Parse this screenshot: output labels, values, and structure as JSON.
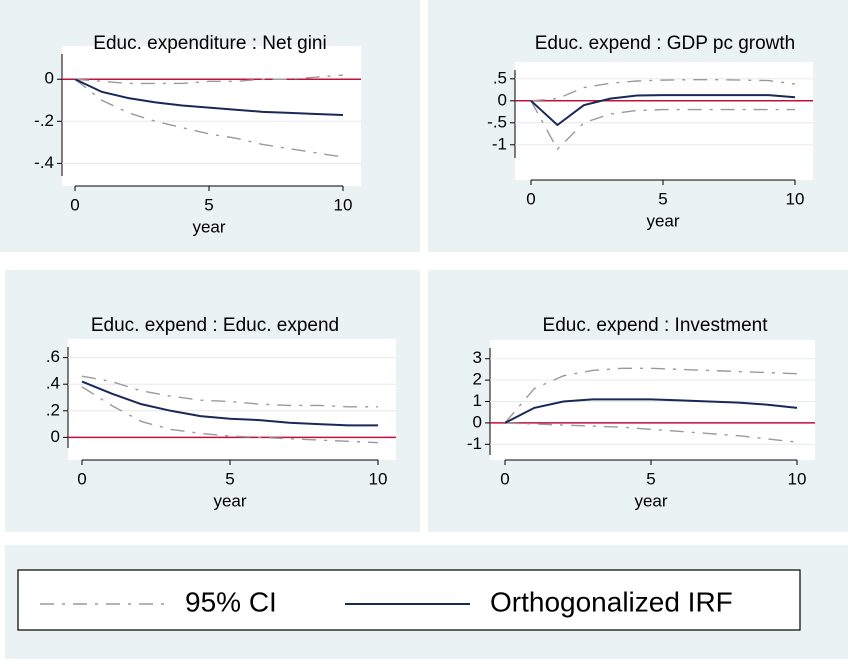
{
  "chart_data": [
    {
      "type": "line",
      "title": "Educ. expenditure : Net gini",
      "x_label": "year",
      "x": [
        0,
        1,
        2,
        3,
        4,
        5,
        6,
        7,
        8,
        9,
        10
      ],
      "irf": [
        0,
        -0.06,
        -0.09,
        -0.11,
        -0.125,
        -0.135,
        -0.145,
        -0.155,
        -0.16,
        -0.165,
        -0.17
      ],
      "ci_lower": [
        0,
        -0.1,
        -0.16,
        -0.2,
        -0.23,
        -0.26,
        -0.28,
        -0.31,
        -0.33,
        -0.35,
        -0.37
      ],
      "ci_upper": [
        0,
        -0.01,
        -0.02,
        -0.02,
        -0.02,
        -0.01,
        -0.01,
        0,
        0,
        0.01,
        0.02
      ],
      "xlim": [
        0,
        10
      ],
      "xticks": [
        0,
        5,
        10
      ],
      "ylim": [
        -0.46,
        0.12
      ],
      "yticks": [
        {
          "value": -0.4,
          "label": "-.4"
        },
        {
          "value": -0.2,
          "label": "-.2"
        },
        0
      ],
      "hline": 0
    },
    {
      "type": "line",
      "title": "Educ. expend : GDP pc growth",
      "x_label": "year",
      "x": [
        0,
        1,
        2,
        3,
        4,
        5,
        6,
        7,
        8,
        9,
        10
      ],
      "irf": [
        0,
        -0.55,
        -0.1,
        0.05,
        0.12,
        0.13,
        0.13,
        0.13,
        0.13,
        0.13,
        0.08
      ],
      "ci_lower": [
        0,
        -1.1,
        -0.5,
        -0.3,
        -0.22,
        -0.2,
        -0.2,
        -0.2,
        -0.2,
        -0.2,
        -0.2
      ],
      "ci_upper": [
        0,
        0.05,
        0.3,
        0.4,
        0.45,
        0.47,
        0.48,
        0.48,
        0.47,
        0.46,
        0.38
      ],
      "xlim": [
        0,
        10
      ],
      "xticks": [
        0,
        5,
        10
      ],
      "ylim": [
        -1.3,
        0.7
      ],
      "yticks": [
        -1,
        {
          "value": -0.5,
          "label": "-.5"
        },
        0,
        {
          "value": 0.5,
          "label": ".5"
        }
      ],
      "hline": 0
    },
    {
      "type": "line",
      "title": "Educ. expend : Educ. expend",
      "x_label": "year",
      "x": [
        0,
        1,
        2,
        3,
        4,
        5,
        6,
        7,
        8,
        9,
        10
      ],
      "irf": [
        0.42,
        0.33,
        0.25,
        0.2,
        0.16,
        0.14,
        0.13,
        0.11,
        0.1,
        0.09,
        0.09
      ],
      "ci_lower": [
        0.38,
        0.24,
        0.12,
        0.06,
        0.03,
        0.01,
        0,
        -0.01,
        -0.02,
        -0.03,
        -0.04
      ],
      "ci_upper": [
        0.46,
        0.42,
        0.35,
        0.31,
        0.28,
        0.27,
        0.25,
        0.24,
        0.24,
        0.23,
        0.23
      ],
      "xlim": [
        0,
        10
      ],
      "xticks": [
        0,
        5,
        10
      ],
      "ylim": [
        -0.08,
        0.68
      ],
      "yticks": [
        0,
        {
          "value": 0.2,
          "label": ".2"
        },
        {
          "value": 0.4,
          "label": ".4"
        },
        {
          "value": 0.6,
          "label": ".6"
        }
      ],
      "hline": 0
    },
    {
      "type": "line",
      "title": "Educ. expend : Investment",
      "x_label": "year",
      "x": [
        0,
        1,
        2,
        3,
        4,
        5,
        6,
        7,
        8,
        9,
        10
      ],
      "irf": [
        0,
        0.7,
        1.0,
        1.1,
        1.1,
        1.1,
        1.05,
        1.0,
        0.95,
        0.85,
        0.7
      ],
      "ci_lower": [
        0,
        -0.05,
        -0.1,
        -0.15,
        -0.2,
        -0.3,
        -0.4,
        -0.5,
        -0.6,
        -0.75,
        -0.9
      ],
      "ci_upper": [
        0,
        1.6,
        2.2,
        2.45,
        2.55,
        2.55,
        2.5,
        2.45,
        2.4,
        2.35,
        2.3
      ],
      "xlim": [
        0,
        10
      ],
      "xticks": [
        0,
        5,
        10
      ],
      "ylim": [
        -1.5,
        3.5
      ],
      "yticks": [
        -1,
        0,
        1,
        2,
        3
      ],
      "hline": 0
    }
  ],
  "legend": {
    "ci": "95% CI",
    "irf": "Orthogonalized IRF",
    "ci_color": "#9a9a9a",
    "irf_color": "#1a2858",
    "hline_color": "#c0103a"
  }
}
